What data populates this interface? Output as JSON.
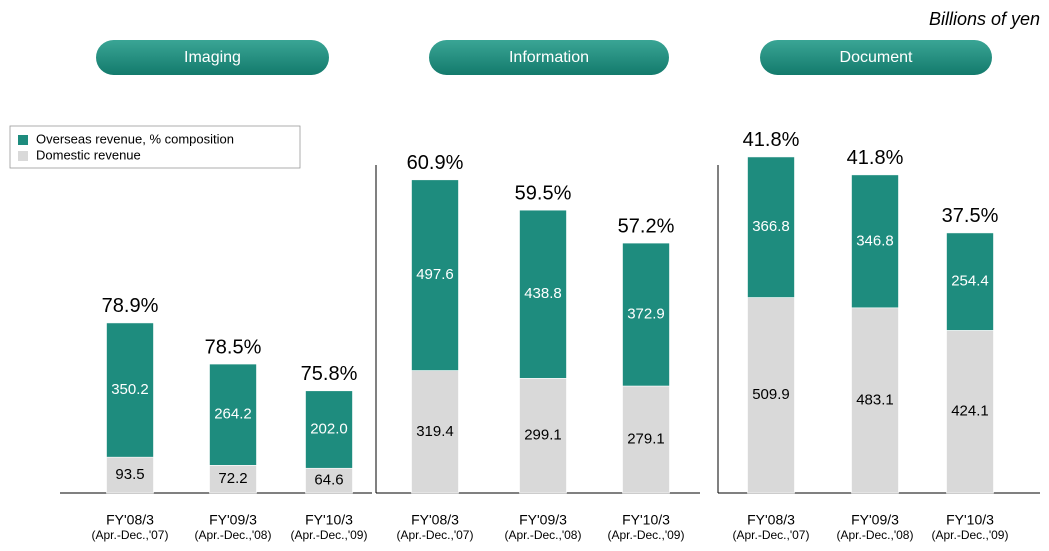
{
  "unit": "Billions of yen",
  "chart_data": [
    {
      "type": "stacked_bar",
      "title": "Imaging",
      "legend": true,
      "categories": [
        "FY'08/3",
        "FY'09/3",
        "FY'10/3"
      ],
      "category_periods": [
        "(Apr.-Dec.,'07)",
        "(Apr.-Dec.,'08)",
        "(Apr.-Dec.,'09)"
      ],
      "series": [
        {
          "name": "Overseas revenue, % composition",
          "color": "#1e8c7e",
          "values": [
            350.2,
            264.2,
            202.0
          ],
          "value_labels": [
            "350.2",
            "264.2",
            "202.0"
          ]
        },
        {
          "name": "Domestic revenue",
          "color": "#d9d9d9",
          "values": [
            93.5,
            72.2,
            64.6
          ]
        }
      ],
      "shares": {
        "values": [
          78.9,
          78.5,
          75.8
        ],
        "value_labels": [
          "78.9%",
          "78.5%",
          "75.8%"
        ]
      },
      "ylim": [
        0,
        900
      ]
    },
    {
      "type": "stacked_bar",
      "title": "Information",
      "legend": false,
      "categories": [
        "FY'08/3",
        "FY'09/3",
        "FY'10/3"
      ],
      "category_periods": [
        "(Apr.-Dec.,'07)",
        "(Apr.-Dec.,'08)",
        "(Apr.-Dec.,'09)"
      ],
      "series": [
        {
          "name": "Overseas revenue, % composition",
          "color": "#1e8c7e",
          "values": [
            497.6,
            438.8,
            372.9
          ]
        },
        {
          "name": "Domestic revenue",
          "color": "#d9d9d9",
          "values": [
            319.4,
            299.1,
            279.1
          ]
        }
      ],
      "shares": {
        "values": [
          60.9,
          59.5,
          57.2
        ],
        "value_labels": [
          "60.9%",
          "59.5%",
          "57.2%"
        ]
      },
      "ylim": [
        0,
        900
      ]
    },
    {
      "type": "stacked_bar",
      "title": "Document",
      "legend": false,
      "categories": [
        "FY'08/3",
        "FY'09/3",
        "FY'10/3"
      ],
      "category_periods": [
        "(Apr.-Dec.,'07)",
        "(Apr.-Dec.,'08)",
        "(Apr.-Dec.,'09)"
      ],
      "series": [
        {
          "name": "Overseas revenue, % composition",
          "color": "#1e8c7e",
          "values": [
            366.8,
            346.8,
            254.4
          ]
        },
        {
          "name": "Domestic revenue",
          "color": "#d9d9d9",
          "values": [
            509.9,
            483.1,
            424.1
          ]
        }
      ],
      "shares": {
        "values": [
          41.8,
          41.8,
          37.5
        ],
        "value_labels": [
          "41.8%",
          "41.8%",
          "37.5%"
        ]
      },
      "ylim": [
        0,
        900
      ]
    }
  ]
}
